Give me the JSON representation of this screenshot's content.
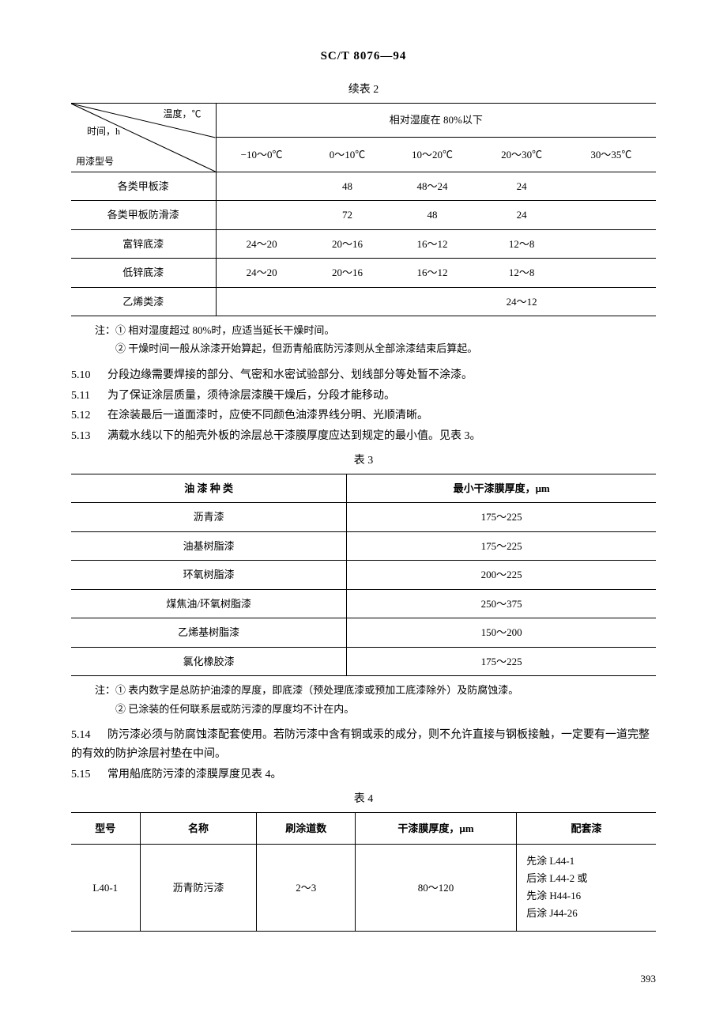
{
  "header": "SC/T 8076—94",
  "table2": {
    "caption": "续表 2",
    "diag_labels": {
      "top": "温度，℃",
      "mid": "时间，h",
      "bot": "用漆型号"
    },
    "group_header": "相对湿度在 80%以下",
    "temp_cols": [
      "−10～0℃",
      "0～10℃",
      "10～20℃",
      "20～30℃",
      "30～35℃"
    ],
    "rows": [
      {
        "name": "各类甲板漆",
        "vals": [
          "",
          "48",
          "48～24",
          "24",
          ""
        ]
      },
      {
        "name": "各类甲板防滑漆",
        "vals": [
          "",
          "72",
          "48",
          "24",
          ""
        ]
      },
      {
        "name": "富锌底漆",
        "vals": [
          "24～20",
          "20～16",
          "16～12",
          "12～8",
          ""
        ]
      },
      {
        "name": "低锌底漆",
        "vals": [
          "24～20",
          "20～16",
          "16～12",
          "12～8",
          ""
        ]
      },
      {
        "name": "乙烯类漆",
        "vals": [
          "",
          "",
          "",
          "24～12",
          ""
        ]
      }
    ],
    "notes_label": "注：",
    "notes": [
      "① 相对湿度超过 80%时，应适当延长干燥时间。",
      "② 干燥时间一般从涂漆开始算起，但沥青船底防污漆则从全部涂漆结束后算起。"
    ]
  },
  "paras_a": [
    {
      "num": "5.10",
      "text": "分段边缘需要焊接的部分、气密和水密试验部分、划线部分等处暂不涂漆。"
    },
    {
      "num": "5.11",
      "text": "为了保证涂层质量，须待涂层漆膜干燥后，分段才能移动。"
    },
    {
      "num": "5.12",
      "text": "在涂装最后一道面漆时，应使不同颜色油漆界线分明、光顺清晰。"
    },
    {
      "num": "5.13",
      "text": "满载水线以下的船壳外板的涂层总干漆膜厚度应达到规定的最小值。见表 3。"
    }
  ],
  "table3": {
    "caption": "表 3",
    "headers": [
      "油 漆 种 类",
      "最小干漆膜厚度，μm"
    ],
    "rows": [
      [
        "沥青漆",
        "175～225"
      ],
      [
        "油基树脂漆",
        "175～225"
      ],
      [
        "环氧树脂漆",
        "200～225"
      ],
      [
        "煤焦油/环氧树脂漆",
        "250～375"
      ],
      [
        "乙烯基树脂漆",
        "150～200"
      ],
      [
        "氯化橡胶漆",
        "175～225"
      ]
    ],
    "notes_label": "注：",
    "notes": [
      "① 表内数字是总防护油漆的厚度，即底漆（预处理底漆或预加工底漆除外）及防腐蚀漆。",
      "② 已涂装的任何联系层或防污漆的厚度均不计在内。"
    ]
  },
  "paras_b": [
    {
      "num": "5.14",
      "text": "防污漆必须与防腐蚀漆配套使用。若防污漆中含有铜或汞的成分，则不允许直接与钢板接触，一定要有一道完整的有效的防护涂层衬垫在中间。"
    },
    {
      "num": "5.15",
      "text": "常用船底防污漆的漆膜厚度见表 4。"
    }
  ],
  "table4": {
    "caption": "表 4",
    "headers": [
      "型号",
      "名称",
      "刷涂道数",
      "干漆膜厚度，μm",
      "配套漆"
    ],
    "row": {
      "model": "L40-1",
      "name": "沥青防污漆",
      "coats": "2～3",
      "thickness": "80～120",
      "match_lines": [
        "先涂 L44-1",
        "后涂 L44-2 或",
        "先涂 H44-16",
        "后涂 J44-26"
      ]
    }
  },
  "page_number": "393"
}
